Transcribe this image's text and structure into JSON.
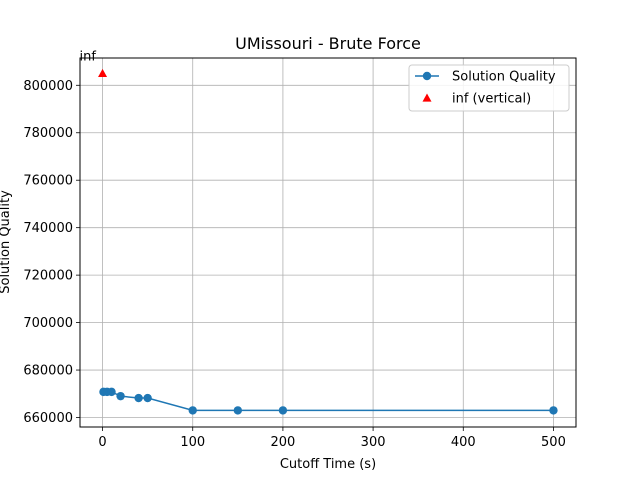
{
  "chart_data": {
    "type": "line",
    "title": "UMissouri - Brute Force",
    "xlabel": "Cutoff Time (s)",
    "ylabel": "Solution Quality",
    "xlim": [
      -25,
      525
    ],
    "ylim": [
      656000,
      811500
    ],
    "xticks": [
      0,
      100,
      200,
      300,
      400,
      500
    ],
    "yticks": [
      660000,
      680000,
      700000,
      720000,
      740000,
      760000,
      780000,
      800000
    ],
    "grid": true,
    "legend_position": "top-right",
    "series": [
      {
        "name": "Solution Quality",
        "marker": "circle",
        "color": "#1f77b4",
        "x": [
          1,
          5,
          10,
          20,
          40,
          50,
          100,
          150,
          200,
          500
        ],
        "y": [
          670800,
          670800,
          670800,
          669000,
          668200,
          668200,
          663000,
          663000,
          663000,
          663000
        ]
      },
      {
        "name": "inf (vertical)",
        "marker": "triangle",
        "color": "#ff0000",
        "x": [
          0
        ],
        "y": [
          805000
        ],
        "label": "inf"
      }
    ]
  }
}
